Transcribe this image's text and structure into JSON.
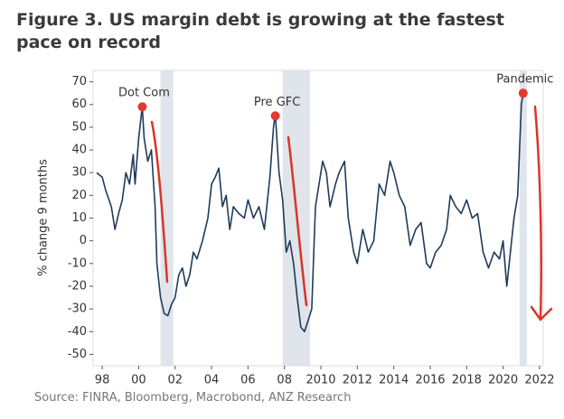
{
  "chart_data": {
    "type": "line",
    "title": "Figure 3. US margin debt is growing at the fastest pace on record",
    "source": "Source: FINRA, Bloomberg, Macrobond, ANZ Research",
    "ylabel": "% change 9 months",
    "xlim": [
      1997.5,
      2022.2
    ],
    "ylim": [
      -55,
      75
    ],
    "xticks": [
      {
        "value": 1998,
        "label": "98"
      },
      {
        "value": 2000,
        "label": "00"
      },
      {
        "value": 2002,
        "label": "02"
      },
      {
        "value": 2004,
        "label": "04"
      },
      {
        "value": 2006,
        "label": "06"
      },
      {
        "value": 2008,
        "label": "08"
      },
      2010,
      2012,
      2014,
      2016,
      2018,
      2020,
      2022
    ],
    "yticks": [
      -50,
      -40,
      -30,
      -20,
      -10,
      0,
      10,
      20,
      30,
      40,
      50,
      60,
      70
    ],
    "grid": false,
    "shaded_ranges": [
      [
        2001.2,
        2001.9
      ],
      [
        2007.9,
        2009.4
      ],
      [
        2020.9,
        2021.3
      ]
    ],
    "annotations": [
      {
        "text": "Dot Com",
        "x": 2000.2,
        "y": 59,
        "color": "#e03a2f"
      },
      {
        "text": "Pre GFC",
        "x": 2007.5,
        "y": 55,
        "color": "#e03a2f"
      },
      {
        "text": "Pandemic",
        "x": 2021.1,
        "y": 65,
        "color": "#e03a2f"
      }
    ],
    "series": [
      {
        "color": "#1f3b5a",
        "x": [
          1997.7,
          1998.0,
          1998.2,
          1998.5,
          1998.7,
          1998.9,
          1999.1,
          1999.3,
          1999.5,
          1999.7,
          1999.8,
          2000.0,
          2000.2,
          2000.3,
          2000.5,
          2000.7,
          2000.9,
          2001.0,
          2001.2,
          2001.4,
          2001.6,
          2001.8,
          2002.0,
          2002.2,
          2002.4,
          2002.6,
          2002.8,
          2003.0,
          2003.2,
          2003.5,
          2003.8,
          2004.0,
          2004.2,
          2004.4,
          2004.6,
          2004.8,
          2005.0,
          2005.2,
          2005.5,
          2005.8,
          2006.0,
          2006.3,
          2006.6,
          2006.9,
          2007.2,
          2007.4,
          2007.5,
          2007.7,
          2007.9,
          2008.1,
          2008.3,
          2008.5,
          2008.7,
          2008.9,
          2009.1,
          2009.3,
          2009.5,
          2009.7,
          2009.9,
          2010.1,
          2010.3,
          2010.5,
          2010.8,
          2011.0,
          2011.3,
          2011.5,
          2011.8,
          2012.0,
          2012.3,
          2012.6,
          2012.9,
          2013.2,
          2013.5,
          2013.8,
          2014.0,
          2014.3,
          2014.6,
          2014.9,
          2015.2,
          2015.5,
          2015.8,
          2016.0,
          2016.3,
          2016.6,
          2016.9,
          2017.1,
          2017.4,
          2017.7,
          2018.0,
          2018.3,
          2018.6,
          2018.9,
          2019.2,
          2019.5,
          2019.8,
          2020.0,
          2020.2,
          2020.4,
          2020.6,
          2020.8,
          2021.0,
          2021.1
        ],
        "values": [
          30,
          28,
          22,
          15,
          5,
          12,
          18,
          30,
          25,
          38,
          25,
          45,
          59,
          45,
          35,
          40,
          15,
          -10,
          -25,
          -32,
          -33,
          -28,
          -25,
          -15,
          -12,
          -20,
          -15,
          -5,
          -8,
          0,
          10,
          25,
          28,
          32,
          15,
          20,
          5,
          15,
          12,
          10,
          18,
          10,
          15,
          5,
          28,
          50,
          56,
          30,
          18,
          -5,
          0,
          -10,
          -25,
          -38,
          -40,
          -35,
          -30,
          15,
          25,
          35,
          30,
          15,
          25,
          30,
          35,
          10,
          -5,
          -10,
          5,
          -5,
          0,
          25,
          20,
          35,
          30,
          20,
          15,
          -2,
          5,
          8,
          -10,
          -12,
          -5,
          -2,
          5,
          20,
          15,
          12,
          18,
          10,
          12,
          -5,
          -12,
          -5,
          -8,
          0,
          -20,
          -5,
          10,
          20,
          60,
          65
        ]
      }
    ]
  }
}
